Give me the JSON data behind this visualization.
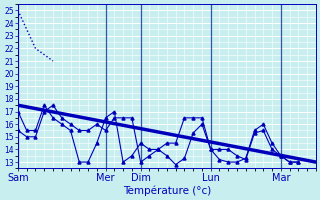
{
  "xlabel": "Température (°c)",
  "ylim": [
    12.5,
    25.5
  ],
  "yticks": [
    13,
    14,
    15,
    16,
    17,
    18,
    19,
    20,
    21,
    22,
    23,
    24,
    25
  ],
  "bg_color": "#c8eef0",
  "grid_color": "#ffffff",
  "line_color": "#0000bb",
  "xtick_labels": [
    "Sam",
    "Mer",
    "Dim",
    "Lun",
    "Mar"
  ],
  "xtick_positions": [
    0,
    60,
    84,
    132,
    180
  ],
  "vline_positions": [
    0,
    60,
    84,
    132,
    180
  ],
  "xlim": [
    0,
    204
  ],
  "series1_x": [
    0,
    12,
    24
  ],
  "series1_y": [
    25,
    22,
    21
  ],
  "series2_x": [
    0,
    6,
    12,
    18,
    24,
    30,
    36,
    42,
    48,
    54,
    60,
    66,
    72,
    78,
    84,
    90,
    96,
    102,
    108,
    114,
    120,
    126,
    132,
    138,
    144,
    150,
    156,
    162,
    168,
    174,
    180,
    186,
    192
  ],
  "series2_y": [
    15.5,
    15.0,
    15.0,
    17.0,
    17.5,
    16.5,
    16.0,
    15.5,
    15.5,
    16.0,
    15.5,
    16.5,
    16.5,
    16.5,
    13.0,
    13.5,
    14.0,
    14.5,
    14.5,
    16.5,
    16.5,
    16.5,
    14.0,
    14.0,
    14.0,
    13.5,
    13.2,
    15.3,
    15.5,
    14.0,
    13.5,
    13.0,
    13.0
  ],
  "series3_x": [
    0,
    204
  ],
  "series3_y": [
    17.5,
    13.0
  ],
  "series3_linewidth": 2.5,
  "series4_x": [
    0,
    6,
    12,
    18,
    24,
    30,
    36,
    42,
    48,
    54,
    60,
    66,
    72,
    78,
    84,
    90,
    96,
    102,
    108,
    114,
    120,
    126,
    132,
    138,
    144,
    150,
    156,
    162,
    168,
    174,
    180,
    186,
    192
  ],
  "series4_y": [
    17.0,
    15.5,
    15.5,
    17.5,
    16.5,
    16.0,
    15.5,
    13.0,
    13.0,
    14.5,
    16.5,
    17.0,
    13.0,
    13.5,
    14.5,
    14.0,
    14.0,
    13.5,
    12.8,
    13.3,
    15.3,
    16.0,
    14.0,
    13.2,
    13.0,
    13.0,
    13.3,
    15.5,
    16.0,
    14.5,
    13.5,
    13.0,
    13.0
  ]
}
